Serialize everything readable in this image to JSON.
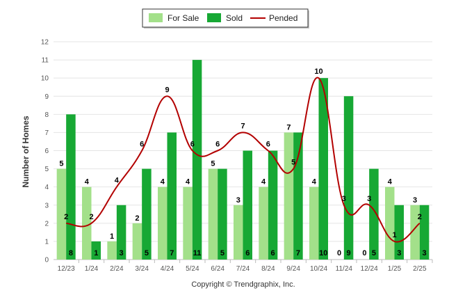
{
  "chart_data": {
    "type": "bar",
    "title": "",
    "xlabel": "",
    "ylabel": "Number of Homes",
    "ylim": [
      0,
      12
    ],
    "yticks": [
      0,
      1,
      2,
      3,
      4,
      5,
      6,
      7,
      8,
      9,
      10,
      11,
      12
    ],
    "categories": [
      "12/23",
      "1/24",
      "2/24",
      "3/24",
      "4/24",
      "5/24",
      "6/24",
      "7/24",
      "8/24",
      "9/24",
      "10/24",
      "11/24",
      "12/24",
      "1/25",
      "2/25"
    ],
    "grid": true,
    "legend_position": "top-center",
    "series": [
      {
        "name": "For Sale",
        "kind": "bar",
        "color": "#a3e08a",
        "values": [
          5,
          4,
          1,
          2,
          4,
          4,
          5,
          3,
          4,
          7,
          4,
          0,
          0,
          4,
          3
        ]
      },
      {
        "name": "Sold",
        "kind": "bar",
        "color": "#17a834",
        "values": [
          8,
          1,
          3,
          5,
          7,
          11,
          5,
          6,
          6,
          7,
          10,
          9,
          5,
          3,
          3
        ]
      },
      {
        "name": "Pended",
        "kind": "line",
        "color": "#b30000",
        "values": [
          2,
          2,
          4,
          6,
          9,
          6,
          6,
          7,
          6,
          5,
          10,
          3,
          3,
          1,
          2
        ]
      }
    ]
  },
  "footer": {
    "copyright": "Copyright © Trendgraphix, Inc."
  }
}
